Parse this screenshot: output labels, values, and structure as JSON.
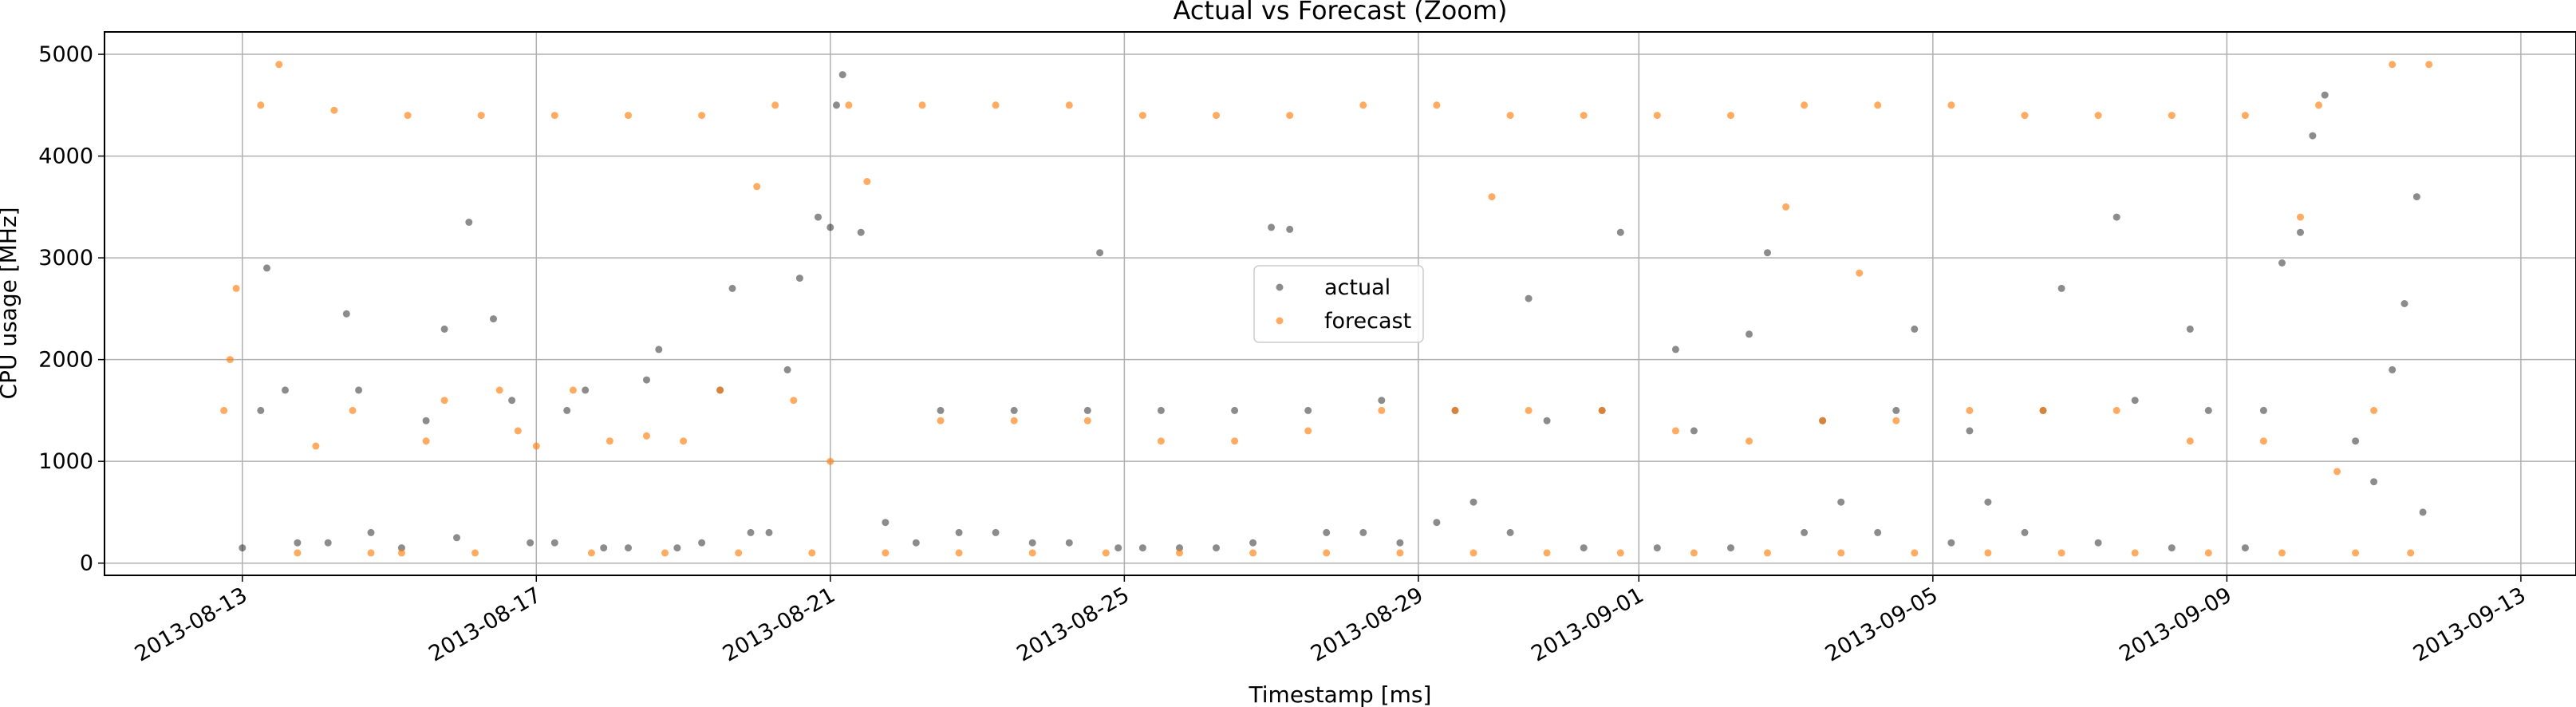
{
  "chart_data": {
    "type": "scatter",
    "title": "Actual vs Forecast (Zoom)",
    "xlabel": "Timestamp [ms]",
    "ylabel": "CPU usage [MHz]",
    "xlim": [
      "2013-08-11T03:00",
      "2013-09-13T18:00"
    ],
    "ylim": [
      -120,
      5220
    ],
    "x_ticks": [
      "2013-08-13",
      "2013-08-17",
      "2013-08-21",
      "2013-08-25",
      "2013-08-29",
      "2013-09-01",
      "2013-09-05",
      "2013-09-09",
      "2013-09-13"
    ],
    "y_ticks": [
      0,
      1000,
      2000,
      3000,
      4000,
      5000
    ],
    "grid": true,
    "legend_position": "center",
    "series": [
      {
        "name": "actual",
        "color": "#000000",
        "points": [
          [
            "2013-08-13T00:00",
            150
          ],
          [
            "2013-08-13T06:00",
            1500
          ],
          [
            "2013-08-13T08:00",
            2900
          ],
          [
            "2013-08-13T14:00",
            1700
          ],
          [
            "2013-08-13T18:00",
            200
          ],
          [
            "2013-08-14T04:00",
            200
          ],
          [
            "2013-08-14T10:00",
            2450
          ],
          [
            "2013-08-14T14:00",
            1700
          ],
          [
            "2013-08-14T18:00",
            300
          ],
          [
            "2013-08-15T04:00",
            150
          ],
          [
            "2013-08-15T12:00",
            1400
          ],
          [
            "2013-08-15T18:00",
            2300
          ],
          [
            "2013-08-15T22:00",
            250
          ],
          [
            "2013-08-16T02:00",
            3350
          ],
          [
            "2013-08-16T10:00",
            2400
          ],
          [
            "2013-08-16T16:00",
            1600
          ],
          [
            "2013-08-16T22:00",
            200
          ],
          [
            "2013-08-17T06:00",
            200
          ],
          [
            "2013-08-17T10:00",
            1500
          ],
          [
            "2013-08-17T16:00",
            1700
          ],
          [
            "2013-08-17T22:00",
            150
          ],
          [
            "2013-08-18T06:00",
            150
          ],
          [
            "2013-08-18T12:00",
            1800
          ],
          [
            "2013-08-18T16:00",
            2100
          ],
          [
            "2013-08-18T22:00",
            150
          ],
          [
            "2013-08-19T06:00",
            200
          ],
          [
            "2013-08-19T12:00",
            1700
          ],
          [
            "2013-08-19T16:00",
            2700
          ],
          [
            "2013-08-19T22:00",
            300
          ],
          [
            "2013-08-20T04:00",
            300
          ],
          [
            "2013-08-20T10:00",
            1900
          ],
          [
            "2013-08-20T14:00",
            2800
          ],
          [
            "2013-08-20T20:00",
            3400
          ],
          [
            "2013-08-21T00:00",
            3300
          ],
          [
            "2013-08-21T02:00",
            4500
          ],
          [
            "2013-08-21T04:00",
            4800
          ],
          [
            "2013-08-21T10:00",
            3250
          ],
          [
            "2013-08-21T18:00",
            400
          ],
          [
            "2013-08-22T04:00",
            200
          ],
          [
            "2013-08-22T12:00",
            1500
          ],
          [
            "2013-08-22T18:00",
            300
          ],
          [
            "2013-08-23T06:00",
            300
          ],
          [
            "2013-08-23T12:00",
            1500
          ],
          [
            "2013-08-23T18:00",
            200
          ],
          [
            "2013-08-24T06:00",
            200
          ],
          [
            "2013-08-24T12:00",
            1500
          ],
          [
            "2013-08-24T16:00",
            3050
          ],
          [
            "2013-08-24T22:00",
            150
          ],
          [
            "2013-08-25T06:00",
            150
          ],
          [
            "2013-08-25T12:00",
            1500
          ],
          [
            "2013-08-25T18:00",
            150
          ],
          [
            "2013-08-26T06:00",
            150
          ],
          [
            "2013-08-26T12:00",
            1500
          ],
          [
            "2013-08-26T18:00",
            200
          ],
          [
            "2013-08-27T00:00",
            3300
          ],
          [
            "2013-08-27T06:00",
            3280
          ],
          [
            "2013-08-27T12:00",
            1500
          ],
          [
            "2013-08-27T18:00",
            300
          ],
          [
            "2013-08-28T06:00",
            300
          ],
          [
            "2013-08-28T12:00",
            1600
          ],
          [
            "2013-08-28T18:00",
            200
          ],
          [
            "2013-08-29T06:00",
            400
          ],
          [
            "2013-08-29T12:00",
            1500
          ],
          [
            "2013-08-29T18:00",
            600
          ],
          [
            "2013-08-30T06:00",
            300
          ],
          [
            "2013-08-30T12:00",
            2600
          ],
          [
            "2013-08-30T18:00",
            1400
          ],
          [
            "2013-08-31T06:00",
            150
          ],
          [
            "2013-08-31T12:00",
            1500
          ],
          [
            "2013-08-31T18:00",
            3250
          ],
          [
            "2013-09-01T06:00",
            150
          ],
          [
            "2013-09-01T12:00",
            2100
          ],
          [
            "2013-09-01T18:00",
            1300
          ],
          [
            "2013-09-02T06:00",
            150
          ],
          [
            "2013-09-02T12:00",
            2250
          ],
          [
            "2013-09-02T18:00",
            3050
          ],
          [
            "2013-09-03T06:00",
            300
          ],
          [
            "2013-09-03T12:00",
            1400
          ],
          [
            "2013-09-03T18:00",
            600
          ],
          [
            "2013-09-04T06:00",
            300
          ],
          [
            "2013-09-04T12:00",
            1500
          ],
          [
            "2013-09-04T18:00",
            2300
          ],
          [
            "2013-09-05T06:00",
            200
          ],
          [
            "2013-09-05T12:00",
            1300
          ],
          [
            "2013-09-05T18:00",
            600
          ],
          [
            "2013-09-06T06:00",
            300
          ],
          [
            "2013-09-06T12:00",
            1500
          ],
          [
            "2013-09-06T18:00",
            2700
          ],
          [
            "2013-09-07T06:00",
            200
          ],
          [
            "2013-09-07T12:00",
            3400
          ],
          [
            "2013-09-07T18:00",
            1600
          ],
          [
            "2013-09-08T06:00",
            150
          ],
          [
            "2013-09-08T12:00",
            2300
          ],
          [
            "2013-09-08T18:00",
            1500
          ],
          [
            "2013-09-09T06:00",
            150
          ],
          [
            "2013-09-09T12:00",
            1500
          ],
          [
            "2013-09-09T18:00",
            2950
          ],
          [
            "2013-09-10T00:00",
            3250
          ],
          [
            "2013-09-10T04:00",
            4200
          ],
          [
            "2013-09-10T08:00",
            4600
          ],
          [
            "2013-09-10T18:00",
            1200
          ],
          [
            "2013-09-11T00:00",
            800
          ],
          [
            "2013-09-11T06:00",
            1900
          ],
          [
            "2013-09-11T10:00",
            2550
          ],
          [
            "2013-09-11T14:00",
            3600
          ],
          [
            "2013-09-11T16:00",
            500
          ]
        ]
      },
      {
        "name": "forecast",
        "color": "#ff7f0e",
        "points": [
          [
            "2013-08-12T18:00",
            1500
          ],
          [
            "2013-08-12T20:00",
            2000
          ],
          [
            "2013-08-12T22:00",
            2700
          ],
          [
            "2013-08-13T06:00",
            4500
          ],
          [
            "2013-08-13T12:00",
            4900
          ],
          [
            "2013-08-13T18:00",
            100
          ],
          [
            "2013-08-14T00:00",
            1150
          ],
          [
            "2013-08-14T06:00",
            4450
          ],
          [
            "2013-08-14T12:00",
            1500
          ],
          [
            "2013-08-14T18:00",
            100
          ],
          [
            "2013-08-15T04:00",
            100
          ],
          [
            "2013-08-15T06:00",
            4400
          ],
          [
            "2013-08-15T12:00",
            1200
          ],
          [
            "2013-08-15T18:00",
            1600
          ],
          [
            "2013-08-16T04:00",
            100
          ],
          [
            "2013-08-16T06:00",
            4400
          ],
          [
            "2013-08-16T12:00",
            1700
          ],
          [
            "2013-08-16T18:00",
            1300
          ],
          [
            "2013-08-17T00:00",
            1150
          ],
          [
            "2013-08-17T06:00",
            4400
          ],
          [
            "2013-08-17T12:00",
            1700
          ],
          [
            "2013-08-17T18:00",
            100
          ],
          [
            "2013-08-18T00:00",
            1200
          ],
          [
            "2013-08-18T06:00",
            4400
          ],
          [
            "2013-08-18T12:00",
            1250
          ],
          [
            "2013-08-18T18:00",
            100
          ],
          [
            "2013-08-19T00:00",
            1200
          ],
          [
            "2013-08-19T06:00",
            4400
          ],
          [
            "2013-08-19T12:00",
            1700
          ],
          [
            "2013-08-19T18:00",
            100
          ],
          [
            "2013-08-20T00:00",
            3700
          ],
          [
            "2013-08-20T06:00",
            4500
          ],
          [
            "2013-08-20T12:00",
            1600
          ],
          [
            "2013-08-20T18:00",
            100
          ],
          [
            "2013-08-21T00:00",
            1000
          ],
          [
            "2013-08-21T06:00",
            4500
          ],
          [
            "2013-08-21T12:00",
            3750
          ],
          [
            "2013-08-21T18:00",
            100
          ],
          [
            "2013-08-22T06:00",
            4500
          ],
          [
            "2013-08-22T12:00",
            1400
          ],
          [
            "2013-08-22T18:00",
            100
          ],
          [
            "2013-08-23T06:00",
            4500
          ],
          [
            "2013-08-23T12:00",
            1400
          ],
          [
            "2013-08-23T18:00",
            100
          ],
          [
            "2013-08-24T06:00",
            4500
          ],
          [
            "2013-08-24T12:00",
            1400
          ],
          [
            "2013-08-24T18:00",
            100
          ],
          [
            "2013-08-25T06:00",
            4400
          ],
          [
            "2013-08-25T12:00",
            1200
          ],
          [
            "2013-08-25T18:00",
            100
          ],
          [
            "2013-08-26T06:00",
            4400
          ],
          [
            "2013-08-26T12:00",
            1200
          ],
          [
            "2013-08-26T18:00",
            100
          ],
          [
            "2013-08-27T06:00",
            4400
          ],
          [
            "2013-08-27T12:00",
            1300
          ],
          [
            "2013-08-27T18:00",
            100
          ],
          [
            "2013-08-28T06:00",
            4500
          ],
          [
            "2013-08-28T12:00",
            1500
          ],
          [
            "2013-08-28T18:00",
            100
          ],
          [
            "2013-08-29T06:00",
            4500
          ],
          [
            "2013-08-29T12:00",
            1500
          ],
          [
            "2013-08-29T18:00",
            100
          ],
          [
            "2013-08-30T00:00",
            3600
          ],
          [
            "2013-08-30T06:00",
            4400
          ],
          [
            "2013-08-30T12:00",
            1500
          ],
          [
            "2013-08-30T18:00",
            100
          ],
          [
            "2013-08-31T06:00",
            4400
          ],
          [
            "2013-08-31T12:00",
            1500
          ],
          [
            "2013-08-31T18:00",
            100
          ],
          [
            "2013-09-01T06:00",
            4400
          ],
          [
            "2013-09-01T12:00",
            1300
          ],
          [
            "2013-09-01T18:00",
            100
          ],
          [
            "2013-09-02T06:00",
            4400
          ],
          [
            "2013-09-02T12:00",
            1200
          ],
          [
            "2013-09-02T18:00",
            100
          ],
          [
            "2013-09-03T00:00",
            3500
          ],
          [
            "2013-09-03T06:00",
            4500
          ],
          [
            "2013-09-03T12:00",
            1400
          ],
          [
            "2013-09-03T18:00",
            100
          ],
          [
            "2013-09-04T00:00",
            2850
          ],
          [
            "2013-09-04T06:00",
            4500
          ],
          [
            "2013-09-04T12:00",
            1400
          ],
          [
            "2013-09-04T18:00",
            100
          ],
          [
            "2013-09-05T06:00",
            4500
          ],
          [
            "2013-09-05T12:00",
            1500
          ],
          [
            "2013-09-05T18:00",
            100
          ],
          [
            "2013-09-06T06:00",
            4400
          ],
          [
            "2013-09-06T12:00",
            1500
          ],
          [
            "2013-09-06T18:00",
            100
          ],
          [
            "2013-09-07T06:00",
            4400
          ],
          [
            "2013-09-07T12:00",
            1500
          ],
          [
            "2013-09-07T18:00",
            100
          ],
          [
            "2013-09-08T06:00",
            4400
          ],
          [
            "2013-09-08T12:00",
            1200
          ],
          [
            "2013-09-08T18:00",
            100
          ],
          [
            "2013-09-09T06:00",
            4400
          ],
          [
            "2013-09-09T12:00",
            1200
          ],
          [
            "2013-09-09T18:00",
            100
          ],
          [
            "2013-09-10T00:00",
            3400
          ],
          [
            "2013-09-10T06:00",
            4500
          ],
          [
            "2013-09-10T12:00",
            900
          ],
          [
            "2013-09-10T18:00",
            100
          ],
          [
            "2013-09-11T00:00",
            1500
          ],
          [
            "2013-09-11T06:00",
            4900
          ],
          [
            "2013-09-11T12:00",
            100
          ],
          [
            "2013-09-11T18:00",
            4900
          ]
        ]
      }
    ]
  }
}
